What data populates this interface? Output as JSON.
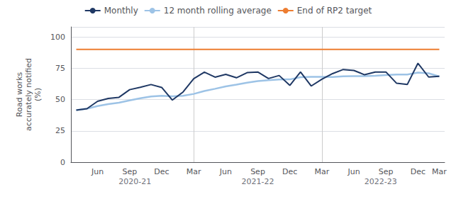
{
  "chart_data": {
    "type": "line",
    "ylabel": "Road works\naccurately notified\n(%)",
    "categories": [
      null,
      null,
      "Jun",
      null,
      null,
      "Sep",
      null,
      null,
      "Dec",
      null,
      null,
      "Mar",
      null,
      null,
      "Jun",
      null,
      null,
      "Sep",
      null,
      null,
      "Dec",
      null,
      null,
      "Mar",
      null,
      null,
      "Jun",
      null,
      null,
      "Sep",
      null,
      null,
      "Dec",
      null,
      "Mar"
    ],
    "series": [
      {
        "name": "Monthly",
        "color": "#1f3864",
        "values": [
          41.6,
          42.7,
          48.6,
          50.9,
          51.8,
          57.9,
          59.8,
          62.0,
          59.7,
          49.6,
          56.0,
          66.6,
          71.9,
          67.9,
          70.1,
          67.4,
          71.5,
          72.0,
          66.8,
          69.2,
          61.3,
          72.0,
          60.8,
          66.2,
          70.7,
          74.0,
          73.2,
          69.8,
          72.0,
          72.0,
          63.0,
          62.0,
          79.0,
          68.0,
          68.5
        ]
      },
      {
        "name": "12 month rolling average",
        "color": "#9dc3e6",
        "values": [
          41.6,
          42.7,
          44.8,
          46.4,
          47.5,
          49.3,
          51.0,
          52.5,
          53.0,
          52.6,
          53.0,
          54.5,
          56.8,
          58.6,
          60.5,
          61.9,
          63.5,
          64.7,
          65.4,
          66.0,
          66.1,
          67.8,
          68.2,
          68.1,
          68.0,
          68.5,
          68.7,
          68.7,
          69.0,
          69.5,
          70.0,
          70.0,
          71.5,
          71.0,
          68.5
        ]
      },
      {
        "name": "End of RP2 target",
        "color": "#ed7d31",
        "values": [
          90,
          90,
          90,
          90,
          90,
          90,
          90,
          90,
          90,
          90,
          90,
          90,
          90,
          90,
          90,
          90,
          90,
          90,
          90,
          90,
          90,
          90,
          90,
          90,
          90,
          90,
          90,
          90,
          90,
          90,
          90,
          90,
          90,
          90,
          90
        ]
      }
    ],
    "ylim": [
      0,
      108
    ],
    "yticks": [
      0,
      25,
      50,
      75,
      100
    ],
    "grid": "y",
    "legend": "top",
    "separators": [
      11,
      23
    ],
    "annotations": [
      {
        "text": "2020-21",
        "x": 5.5
      },
      {
        "text": "2021-22",
        "x": 17.0
      },
      {
        "text": "2022-23",
        "x": 28.5
      }
    ]
  }
}
